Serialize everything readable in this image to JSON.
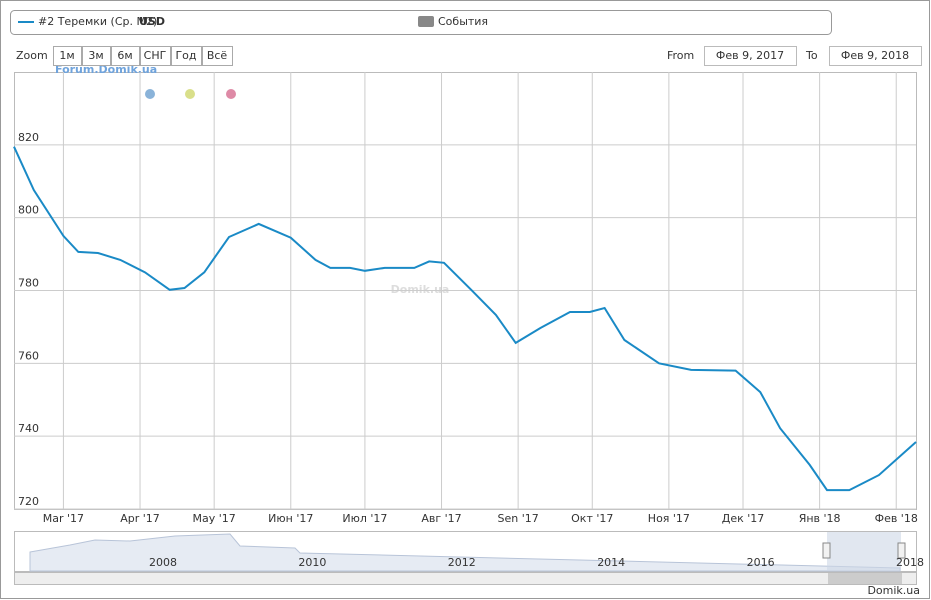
{
  "legend": {
    "events": "События"
  },
  "controls": {
    "zoom_label": "Zoom",
    "buttons": [
      "1м",
      "3м",
      "6м",
      "СНГ",
      "Год",
      "Всё"
    ],
    "from_label": "From",
    "from_value": "Фев 9, 2017",
    "to_label": "To",
    "to_value": "Фев 9, 2018"
  },
  "watermarks": {
    "main": "Domik.ua",
    "forum": "Forum.Domik.ua",
    "footer": "Domik.ua"
  },
  "navigator": {
    "labels": [
      "2008",
      "2010",
      "2012",
      "2014",
      "2016",
      "2018"
    ]
  },
  "chart_data": {
    "type": "line",
    "unit": "USD",
    "x": [
      "2017-02-09",
      "2017-02-17",
      "2017-03-01",
      "2017-03-07",
      "2017-03-15",
      "2017-03-24",
      "2017-04-03",
      "2017-04-13",
      "2017-04-19",
      "2017-04-27",
      "2017-05-07",
      "2017-05-19",
      "2017-06-01",
      "2017-06-11",
      "2017-06-17",
      "2017-06-25",
      "2017-07-01",
      "2017-07-09",
      "2017-07-21",
      "2017-07-27",
      "2017-08-02",
      "2017-08-13",
      "2017-08-23",
      "2017-08-31",
      "2017-09-10",
      "2017-09-22",
      "2017-09-30",
      "2017-10-06",
      "2017-10-14",
      "2017-10-28",
      "2017-11-10",
      "2017-11-28",
      "2017-12-08",
      "2017-12-16",
      "2017-12-28",
      "2018-01-04",
      "2018-01-13",
      "2018-01-25",
      "2018-02-09"
    ],
    "series": [
      {
        "name": "#2 Теремки (Ср. M2)",
        "color": "#1a8ac6",
        "values": [
          819.5,
          807.6,
          795,
          790.6,
          790.3,
          788.4,
          785,
          780.2,
          780.7,
          785,
          794.7,
          798.3,
          794.5,
          788.4,
          786.2,
          786.2,
          785.4,
          786.2,
          786.2,
          788,
          787.6,
          780.2,
          773.3,
          765.6,
          769.7,
          774.1,
          774.1,
          775.2,
          766.4,
          760,
          758.2,
          758,
          752.1,
          742.2,
          732.1,
          725.2,
          725.2,
          729.3,
          738.4
        ]
      }
    ],
    "xlim": [
      "2017-02-09",
      "2018-02-09"
    ],
    "ylim": [
      720,
      840
    ],
    "yticks": [
      720,
      740,
      760,
      780,
      800,
      820
    ],
    "xticks": [
      {
        "value": "2017-03-01",
        "label": "Mar '17"
      },
      {
        "value": "2017-04-01",
        "label": "Apr '17"
      },
      {
        "value": "2017-05-01",
        "label": "May '17"
      },
      {
        "value": "2017-06-01",
        "label": "Июн '17"
      },
      {
        "value": "2017-07-01",
        "label": "Июл '17"
      },
      {
        "value": "2017-08-01",
        "label": "Авг '17"
      },
      {
        "value": "2017-09-01",
        "label": "Sen '17"
      },
      {
        "value": "2017-10-01",
        "label": "Окт '17"
      },
      {
        "value": "2017-11-01",
        "label": "Ноя '17"
      },
      {
        "value": "2017-12-01",
        "label": "Дек '17"
      },
      {
        "value": "2018-01-01",
        "label": "Янв '18"
      },
      {
        "value": "2018-02-01",
        "label": "Фев '18"
      }
    ],
    "grid": true
  }
}
